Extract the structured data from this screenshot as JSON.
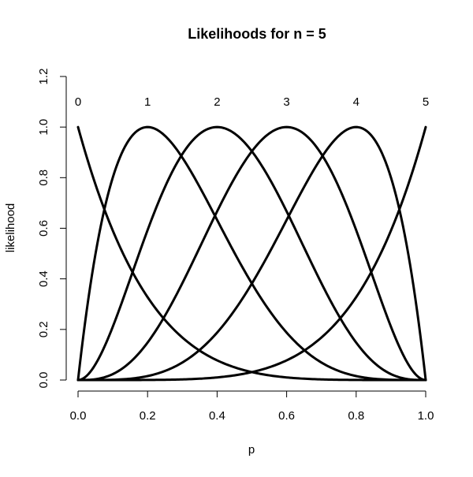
{
  "chart_data": {
    "type": "line",
    "title": "Likelihoods for n =  5",
    "xlabel": "p",
    "ylabel": "likelihood",
    "xlim": [
      0,
      1
    ],
    "ylim": [
      0,
      1.2
    ],
    "x_ticks": [
      0.0,
      0.2,
      0.4,
      0.6,
      0.8,
      1.0
    ],
    "x_tick_labels": [
      "0.0",
      "0.2",
      "0.4",
      "0.6",
      "0.8",
      "1.0"
    ],
    "y_ticks": [
      0.0,
      0.2,
      0.4,
      0.6,
      0.8,
      1.0,
      1.2
    ],
    "y_tick_labels": [
      "0.0",
      "0.2",
      "0.4",
      "0.6",
      "0.8",
      "1.0",
      "1.2"
    ],
    "grid": false,
    "legend": "none",
    "n": 5,
    "series_formula": "scaled binomial likelihood L(p) = p^k (1-p)^(n-k) / max, max at p = k/n",
    "series": [
      {
        "k": 0,
        "label": "0",
        "peak_x": 0.0,
        "label_y": 1.1
      },
      {
        "k": 1,
        "label": "1",
        "peak_x": 0.2,
        "label_y": 1.1
      },
      {
        "k": 2,
        "label": "2",
        "peak_x": 0.4,
        "label_y": 1.1
      },
      {
        "k": 3,
        "label": "3",
        "peak_x": 0.6,
        "label_y": 1.1
      },
      {
        "k": 4,
        "label": "4",
        "peak_x": 0.8,
        "label_y": 1.1
      },
      {
        "k": 5,
        "label": "5",
        "peak_x": 1.0,
        "label_y": 1.1
      }
    ],
    "line_color": "#000000"
  }
}
